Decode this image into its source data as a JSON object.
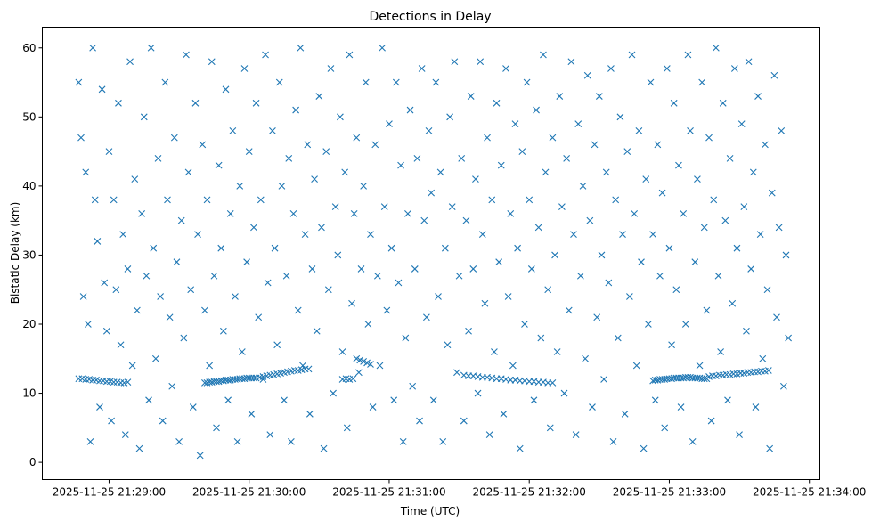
{
  "chart_data": {
    "type": "scatter",
    "title": "Detections in Delay",
    "xlabel": "Time (UTC)",
    "ylabel": "Bistatic Delay (km)",
    "x_units": "seconds since 2025-11-25 21:29:00",
    "xlim": [
      -28.6,
      304.5
    ],
    "ylim": [
      -2.5,
      63
    ],
    "grid": false,
    "marker": "x",
    "color": "#1f77b4",
    "xticks": [
      {
        "value": 0,
        "label": "2025-11-25 21:29:00"
      },
      {
        "value": 60,
        "label": "2025-11-25 21:30:00"
      },
      {
        "value": 120,
        "label": "2025-11-25 21:31:00"
      },
      {
        "value": 180,
        "label": "2025-11-25 21:32:00"
      },
      {
        "value": 240,
        "label": "2025-11-25 21:33:00"
      },
      {
        "value": 300,
        "label": "2025-11-25 21:34:00"
      }
    ],
    "yticks": [
      {
        "value": 0,
        "label": "0"
      },
      {
        "value": 10,
        "label": "10"
      },
      {
        "value": 20,
        "label": "20"
      },
      {
        "value": 30,
        "label": "30"
      },
      {
        "value": 40,
        "label": "40"
      },
      {
        "value": 50,
        "label": "50"
      },
      {
        "value": 60,
        "label": "60"
      }
    ],
    "points": [
      [
        -13,
        55
      ],
      [
        -12,
        47
      ],
      [
        -11,
        24
      ],
      [
        -10,
        42
      ],
      [
        -9,
        20
      ],
      [
        -8,
        3
      ],
      [
        -7,
        60
      ],
      [
        -6,
        38
      ],
      [
        -5,
        32
      ],
      [
        -4,
        8
      ],
      [
        -3,
        54
      ],
      [
        -2,
        26
      ],
      [
        -1,
        19
      ],
      [
        0,
        45
      ],
      [
        1,
        6
      ],
      [
        2,
        38
      ],
      [
        3,
        25
      ],
      [
        4,
        52
      ],
      [
        5,
        17
      ],
      [
        6,
        33
      ],
      [
        7,
        4
      ],
      [
        8,
        28
      ],
      [
        9,
        58
      ],
      [
        10,
        14
      ],
      [
        11,
        41
      ],
      [
        12,
        22
      ],
      [
        13,
        2
      ],
      [
        14,
        36
      ],
      [
        15,
        50
      ],
      [
        16,
        27
      ],
      [
        17,
        9
      ],
      [
        18,
        60
      ],
      [
        19,
        31
      ],
      [
        20,
        15
      ],
      [
        21,
        44
      ],
      [
        22,
        24
      ],
      [
        23,
        6
      ],
      [
        24,
        55
      ],
      [
        25,
        38
      ],
      [
        26,
        21
      ],
      [
        27,
        11
      ],
      [
        28,
        47
      ],
      [
        29,
        29
      ],
      [
        30,
        3
      ],
      [
        31,
        35
      ],
      [
        32,
        18
      ],
      [
        33,
        59
      ],
      [
        34,
        42
      ],
      [
        35,
        25
      ],
      [
        36,
        8
      ],
      [
        37,
        52
      ],
      [
        38,
        33
      ],
      [
        39,
        1
      ],
      [
        40,
        46
      ],
      [
        41,
        22
      ],
      [
        42,
        38
      ],
      [
        43,
        14
      ],
      [
        44,
        58
      ],
      [
        45,
        27
      ],
      [
        46,
        5
      ],
      [
        47,
        43
      ],
      [
        48,
        31
      ],
      [
        49,
        19
      ],
      [
        50,
        54
      ],
      [
        51,
        9
      ],
      [
        52,
        36
      ],
      [
        53,
        48
      ],
      [
        54,
        24
      ],
      [
        55,
        3
      ],
      [
        56,
        40
      ],
      [
        57,
        16
      ],
      [
        58,
        57
      ],
      [
        59,
        29
      ],
      [
        60,
        45
      ],
      [
        61,
        7
      ],
      [
        62,
        34
      ],
      [
        63,
        52
      ],
      [
        64,
        21
      ],
      [
        65,
        38
      ],
      [
        66,
        12
      ],
      [
        67,
        59
      ],
      [
        68,
        26
      ],
      [
        69,
        4
      ],
      [
        70,
        48
      ],
      [
        71,
        31
      ],
      [
        72,
        17
      ],
      [
        73,
        55
      ],
      [
        74,
        40
      ],
      [
        75,
        9
      ],
      [
        76,
        27
      ],
      [
        77,
        44
      ],
      [
        78,
        3
      ],
      [
        79,
        36
      ],
      [
        80,
        51
      ],
      [
        81,
        22
      ],
      [
        82,
        60
      ],
      [
        83,
        14
      ],
      [
        84,
        33
      ],
      [
        85,
        46
      ],
      [
        86,
        7
      ],
      [
        87,
        28
      ],
      [
        88,
        41
      ],
      [
        89,
        19
      ],
      [
        90,
        53
      ],
      [
        91,
        34
      ],
      [
        92,
        2
      ],
      [
        93,
        45
      ],
      [
        94,
        25
      ],
      [
        95,
        57
      ],
      [
        96,
        10
      ],
      [
        97,
        37
      ],
      [
        98,
        30
      ],
      [
        99,
        50
      ],
      [
        100,
        16
      ],
      [
        101,
        42
      ],
      [
        102,
        5
      ],
      [
        103,
        59
      ],
      [
        104,
        23
      ],
      [
        105,
        36
      ],
      [
        106,
        47
      ],
      [
        107,
        13
      ],
      [
        108,
        28
      ],
      [
        109,
        40
      ],
      [
        110,
        55
      ],
      [
        111,
        20
      ],
      [
        112,
        33
      ],
      [
        113,
        8
      ],
      [
        114,
        46
      ],
      [
        115,
        27
      ],
      [
        116,
        14
      ],
      [
        117,
        60
      ],
      [
        118,
        37
      ],
      [
        119,
        22
      ],
      [
        120,
        49
      ],
      [
        121,
        31
      ],
      [
        122,
        9
      ],
      [
        123,
        55
      ],
      [
        124,
        26
      ],
      [
        125,
        43
      ],
      [
        126,
        3
      ],
      [
        127,
        18
      ],
      [
        128,
        36
      ],
      [
        129,
        51
      ],
      [
        130,
        11
      ],
      [
        131,
        28
      ],
      [
        132,
        44
      ],
      [
        133,
        6
      ],
      [
        134,
        57
      ],
      [
        135,
        35
      ],
      [
        136,
        21
      ],
      [
        137,
        48
      ],
      [
        138,
        39
      ],
      [
        139,
        9
      ],
      [
        140,
        55
      ],
      [
        141,
        24
      ],
      [
        142,
        42
      ],
      [
        143,
        3
      ],
      [
        144,
        31
      ],
      [
        145,
        17
      ],
      [
        146,
        50
      ],
      [
        147,
        37
      ],
      [
        148,
        58
      ],
      [
        149,
        13
      ],
      [
        150,
        27
      ],
      [
        151,
        44
      ],
      [
        152,
        6
      ],
      [
        153,
        35
      ],
      [
        154,
        19
      ],
      [
        155,
        53
      ],
      [
        156,
        28
      ],
      [
        157,
        41
      ],
      [
        158,
        10
      ],
      [
        159,
        58
      ],
      [
        160,
        33
      ],
      [
        161,
        23
      ],
      [
        162,
        47
      ],
      [
        163,
        4
      ],
      [
        164,
        38
      ],
      [
        165,
        16
      ],
      [
        166,
        52
      ],
      [
        167,
        29
      ],
      [
        168,
        43
      ],
      [
        169,
        7
      ],
      [
        170,
        57
      ],
      [
        171,
        24
      ],
      [
        172,
        36
      ],
      [
        173,
        14
      ],
      [
        174,
        49
      ],
      [
        175,
        31
      ],
      [
        176,
        2
      ],
      [
        177,
        45
      ],
      [
        178,
        20
      ],
      [
        179,
        55
      ],
      [
        180,
        38
      ],
      [
        181,
        28
      ],
      [
        182,
        9
      ],
      [
        183,
        51
      ],
      [
        184,
        34
      ],
      [
        185,
        18
      ],
      [
        186,
        59
      ],
      [
        187,
        42
      ],
      [
        188,
        25
      ],
      [
        189,
        5
      ],
      [
        190,
        47
      ],
      [
        191,
        30
      ],
      [
        192,
        16
      ],
      [
        193,
        53
      ],
      [
        194,
        37
      ],
      [
        195,
        10
      ],
      [
        196,
        44
      ],
      [
        197,
        22
      ],
      [
        198,
        58
      ],
      [
        199,
        33
      ],
      [
        200,
        4
      ],
      [
        201,
        49
      ],
      [
        202,
        27
      ],
      [
        203,
        40
      ],
      [
        204,
        15
      ],
      [
        205,
        56
      ],
      [
        206,
        35
      ],
      [
        207,
        8
      ],
      [
        208,
        46
      ],
      [
        209,
        21
      ],
      [
        210,
        53
      ],
      [
        211,
        30
      ],
      [
        212,
        12
      ],
      [
        213,
        42
      ],
      [
        214,
        26
      ],
      [
        215,
        57
      ],
      [
        216,
        3
      ],
      [
        217,
        38
      ],
      [
        218,
        18
      ],
      [
        219,
        50
      ],
      [
        220,
        33
      ],
      [
        221,
        7
      ],
      [
        222,
        45
      ],
      [
        223,
        24
      ],
      [
        224,
        59
      ],
      [
        225,
        36
      ],
      [
        226,
        14
      ],
      [
        227,
        48
      ],
      [
        228,
        29
      ],
      [
        229,
        2
      ],
      [
        230,
        41
      ],
      [
        231,
        20
      ],
      [
        232,
        55
      ],
      [
        233,
        33
      ],
      [
        234,
        9
      ],
      [
        235,
        46
      ],
      [
        236,
        27
      ],
      [
        237,
        39
      ],
      [
        238,
        5
      ],
      [
        239,
        57
      ],
      [
        240,
        31
      ],
      [
        241,
        17
      ],
      [
        242,
        52
      ],
      [
        243,
        25
      ],
      [
        244,
        43
      ],
      [
        245,
        8
      ],
      [
        246,
        36
      ],
      [
        247,
        20
      ],
      [
        248,
        59
      ],
      [
        249,
        48
      ],
      [
        250,
        3
      ],
      [
        251,
        29
      ],
      [
        252,
        41
      ],
      [
        253,
        14
      ],
      [
        254,
        55
      ],
      [
        255,
        34
      ],
      [
        256,
        22
      ],
      [
        257,
        47
      ],
      [
        258,
        6
      ],
      [
        259,
        38
      ],
      [
        260,
        60
      ],
      [
        261,
        27
      ],
      [
        262,
        16
      ],
      [
        263,
        52
      ],
      [
        264,
        35
      ],
      [
        265,
        9
      ],
      [
        266,
        44
      ],
      [
        267,
        23
      ],
      [
        268,
        57
      ],
      [
        269,
        31
      ],
      [
        270,
        4
      ],
      [
        271,
        49
      ],
      [
        272,
        37
      ],
      [
        273,
        19
      ],
      [
        274,
        58
      ],
      [
        275,
        28
      ],
      [
        276,
        42
      ],
      [
        277,
        8
      ],
      [
        278,
        53
      ],
      [
        279,
        33
      ],
      [
        280,
        15
      ],
      [
        281,
        46
      ],
      [
        282,
        25
      ],
      [
        283,
        2
      ],
      [
        284,
        39
      ],
      [
        285,
        56
      ],
      [
        286,
        21
      ],
      [
        287,
        34
      ],
      [
        288,
        48
      ],
      [
        289,
        11
      ],
      [
        290,
        30
      ],
      [
        291,
        18
      ],
      [
        -13,
        12.1
      ],
      [
        -11.5,
        12.1
      ],
      [
        -10,
        12.0
      ],
      [
        -8.5,
        12.0
      ],
      [
        -7,
        11.9
      ],
      [
        -5.5,
        11.9
      ],
      [
        -4,
        11.8
      ],
      [
        -2.5,
        11.8
      ],
      [
        -1,
        11.7
      ],
      [
        0.5,
        11.7
      ],
      [
        2,
        11.6
      ],
      [
        3.5,
        11.6
      ],
      [
        5,
        11.5
      ],
      [
        6.5,
        11.5
      ],
      [
        8,
        11.6
      ],
      [
        41,
        11.5
      ],
      [
        42,
        11.5
      ],
      [
        43,
        11.6
      ],
      [
        44,
        11.6
      ],
      [
        45,
        11.7
      ],
      [
        46,
        11.7
      ],
      [
        47,
        11.7
      ],
      [
        48,
        11.8
      ],
      [
        49,
        11.8
      ],
      [
        50,
        11.9
      ],
      [
        51,
        11.9
      ],
      [
        52,
        11.9
      ],
      [
        53,
        12.0
      ],
      [
        54,
        12.0
      ],
      [
        55,
        12.0
      ],
      [
        56,
        12.1
      ],
      [
        57,
        12.1
      ],
      [
        58,
        12.1
      ],
      [
        59,
        12.2
      ],
      [
        60,
        12.2
      ],
      [
        61,
        12.2
      ],
      [
        62,
        12.2
      ],
      [
        63,
        12.2
      ],
      [
        64.5,
        12.3
      ],
      [
        66,
        12.4
      ],
      [
        67.5,
        12.5
      ],
      [
        69,
        12.6
      ],
      [
        70.5,
        12.7
      ],
      [
        72,
        12.8
      ],
      [
        73.5,
        12.9
      ],
      [
        75,
        13.0
      ],
      [
        76.5,
        13.1
      ],
      [
        78,
        13.2
      ],
      [
        79.5,
        13.3
      ],
      [
        81,
        13.3
      ],
      [
        82.5,
        13.4
      ],
      [
        84,
        13.5
      ],
      [
        85.5,
        13.5
      ],
      [
        100,
        12.0
      ],
      [
        101.5,
        12.1
      ],
      [
        103,
        12.0
      ],
      [
        104.5,
        12.1
      ],
      [
        106,
        15.0
      ],
      [
        107.5,
        14.8
      ],
      [
        109,
        14.6
      ],
      [
        110.5,
        14.4
      ],
      [
        112,
        14.2
      ],
      [
        152,
        12.6
      ],
      [
        154,
        12.5
      ],
      [
        156,
        12.5
      ],
      [
        158,
        12.4
      ],
      [
        160,
        12.3
      ],
      [
        162,
        12.3
      ],
      [
        164,
        12.2
      ],
      [
        166,
        12.1
      ],
      [
        168,
        12.1
      ],
      [
        170,
        12.0
      ],
      [
        172,
        11.9
      ],
      [
        174,
        11.9
      ],
      [
        176,
        11.8
      ],
      [
        178,
        11.8
      ],
      [
        180,
        11.7
      ],
      [
        182,
        11.7
      ],
      [
        184,
        11.6
      ],
      [
        186,
        11.6
      ],
      [
        188,
        11.5
      ],
      [
        190,
        11.5
      ],
      [
        233,
        11.8
      ],
      [
        234,
        11.9
      ],
      [
        235,
        11.9
      ],
      [
        236,
        12.0
      ],
      [
        237,
        12.0
      ],
      [
        238,
        12.0
      ],
      [
        239,
        12.1
      ],
      [
        240,
        12.1
      ],
      [
        241,
        12.1
      ],
      [
        242,
        12.2
      ],
      [
        243,
        12.2
      ],
      [
        244,
        12.2
      ],
      [
        245,
        12.2
      ],
      [
        246,
        12.2
      ],
      [
        247,
        12.3
      ],
      [
        248,
        12.3
      ],
      [
        249,
        12.3
      ],
      [
        250,
        12.2
      ],
      [
        251,
        12.2
      ],
      [
        252,
        12.2
      ],
      [
        253,
        12.2
      ],
      [
        254,
        12.1
      ],
      [
        255,
        12.1
      ],
      [
        256,
        12.1
      ],
      [
        257,
        12.4
      ],
      [
        258.5,
        12.5
      ],
      [
        260,
        12.5
      ],
      [
        261.5,
        12.6
      ],
      [
        263,
        12.6
      ],
      [
        264.5,
        12.7
      ],
      [
        266,
        12.7
      ],
      [
        267.5,
        12.8
      ],
      [
        269,
        12.8
      ],
      [
        270.5,
        12.9
      ],
      [
        272,
        12.9
      ],
      [
        273.5,
        13.0
      ],
      [
        275,
        13.0
      ],
      [
        276.5,
        13.1
      ],
      [
        278,
        13.1
      ],
      [
        279.5,
        13.2
      ],
      [
        281,
        13.2
      ],
      [
        282.5,
        13.3
      ]
    ]
  }
}
